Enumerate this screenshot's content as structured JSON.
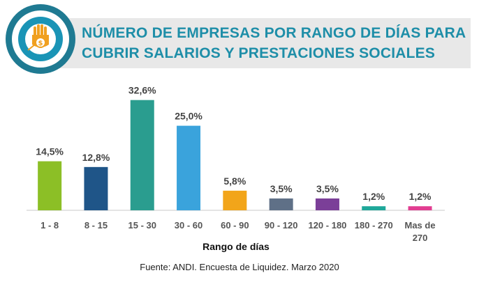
{
  "header": {
    "title_line1": "NÚMERO DE EMPRESAS POR RANGO DE DÍAS PARA",
    "title_line2": "CUBRIR SALARIOS Y PRESTACIONES SOCIALES",
    "logo_icon": "hand-coin-icon"
  },
  "chart_data": {
    "type": "bar",
    "xlabel": "Rango de días",
    "ylabel": "",
    "ylim": [
      0,
      35
    ],
    "grid": false,
    "legend": "none",
    "categories": [
      "1 - 8",
      "8 - 15",
      "15 - 30",
      "30 - 60",
      "60 - 90",
      "90 - 120",
      "120 - 180",
      "180 - 270",
      "Mas de 270"
    ],
    "category_lines": [
      [
        "1 - 8"
      ],
      [
        "8 - 15"
      ],
      [
        "15 - 30"
      ],
      [
        "30 - 60"
      ],
      [
        "60 - 90"
      ],
      [
        "90 - 120"
      ],
      [
        "120 - 180"
      ],
      [
        "180 - 270"
      ],
      [
        "Mas de",
        "270"
      ]
    ],
    "values": [
      14.5,
      12.8,
      32.6,
      25.0,
      5.8,
      3.5,
      3.5,
      1.2,
      1.2
    ],
    "value_labels": [
      "14,5%",
      "12,8%",
      "32,6%",
      "25,0%",
      "5,8%",
      "3,5%",
      "3,5%",
      "1,2%",
      "1,2%"
    ],
    "colors": [
      "#8cbf26",
      "#1f5588",
      "#2a9d8f",
      "#3aa3dc",
      "#f2a51a",
      "#5f7087",
      "#7b3f98",
      "#1fa89a",
      "#e23d91"
    ]
  },
  "footer": {
    "source": "Fuente: ANDI. Encuesta de Liquidez. Marzo 2020"
  }
}
